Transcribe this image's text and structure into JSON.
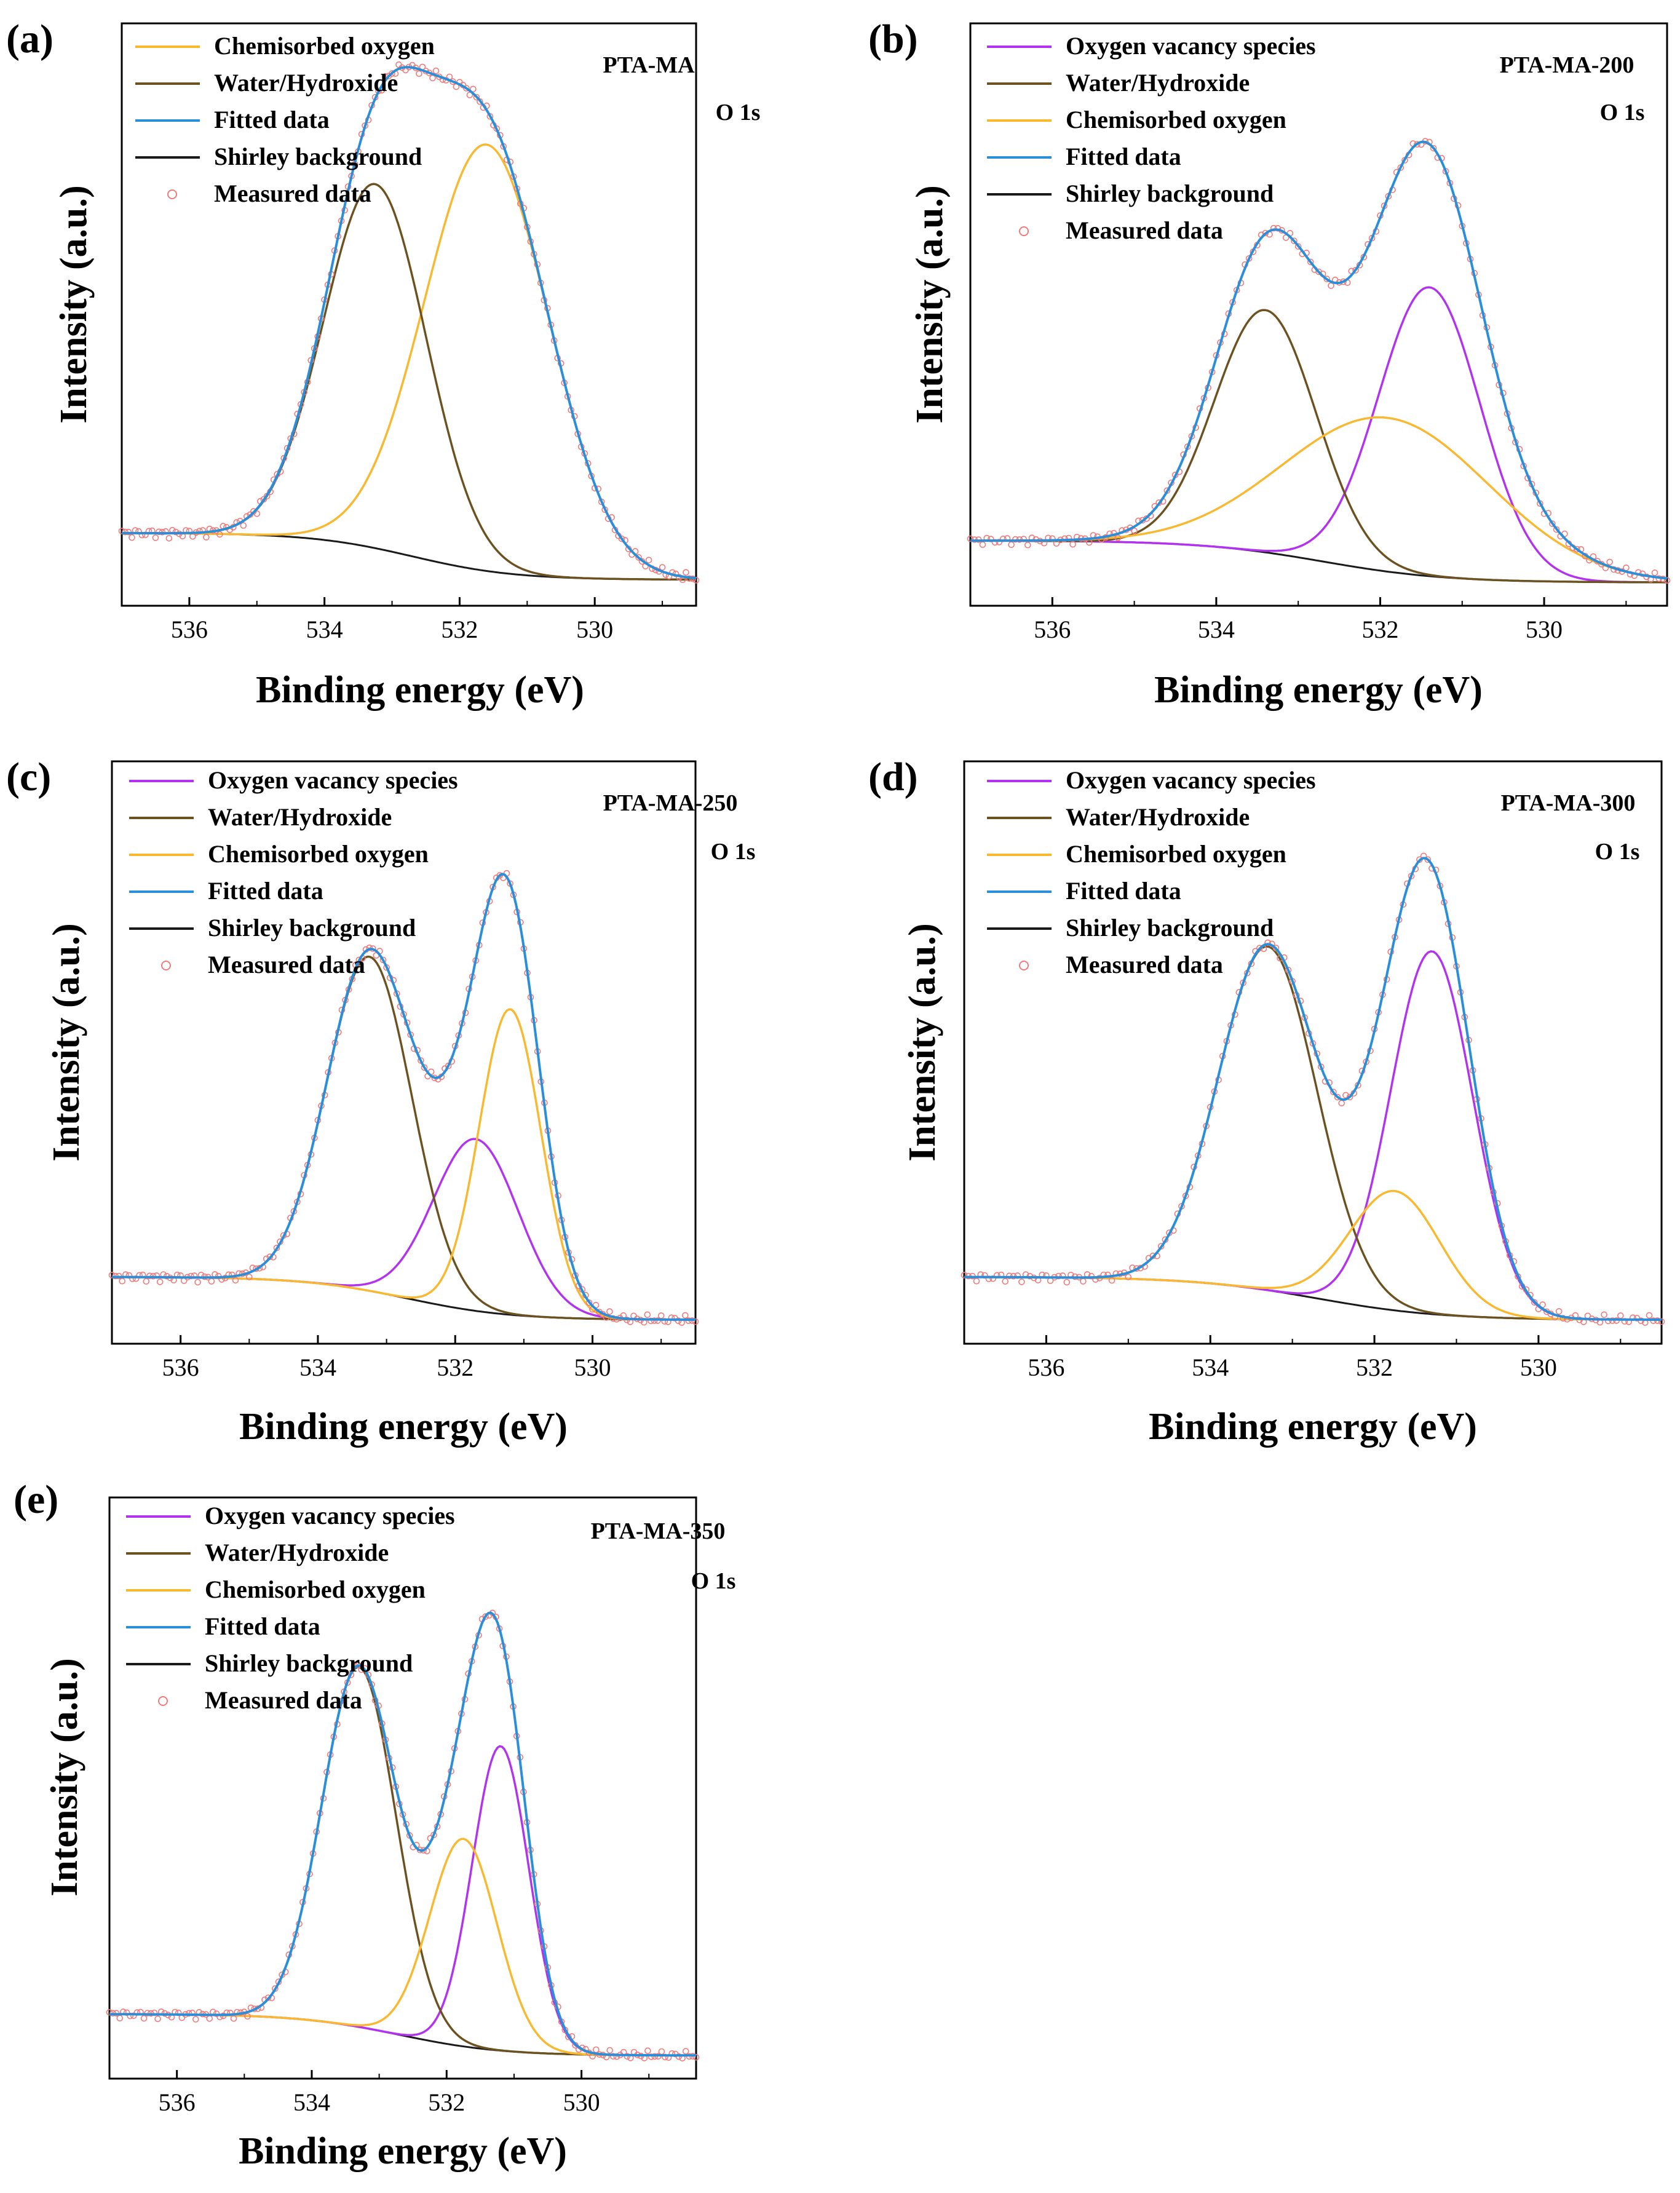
{
  "colors": {
    "vacancy": "#b233ee",
    "water": "#6b5220",
    "chemisorbed": "#f8b830",
    "fitted": "#2a8fd8",
    "shirley": "#1a1a1a",
    "measured": "#f07a7a"
  },
  "chart_data": [
    {
      "type": "line",
      "panel": "(a)",
      "sample": "PTA-MA",
      "region": "O 1s",
      "xlabel": "Binding energy (eV)",
      "ylabel": "Intensity (a.u.)",
      "xlim": [
        537.0,
        528.5
      ],
      "ylim": [
        0,
        1.12
      ],
      "xticks": [
        "536",
        "534",
        "532",
        "530"
      ],
      "xtick_values": [
        536,
        534,
        532,
        530
      ],
      "legend_position": "top-left",
      "legend": [
        "Chemisorbed oxygen",
        "Water/Hydroxide",
        "Fitted data",
        "Shirley background",
        "Measured data"
      ],
      "background": {
        "low": 0.05,
        "high": 0.14,
        "center": 532.7,
        "width": 0.75
      },
      "components": [
        {
          "name": "Chemisorbed oxygen",
          "key": "chemisorbed",
          "center": 531.6,
          "height": 0.82,
          "sigma": 0.92
        },
        {
          "name": "Water/Hydroxide",
          "key": "water",
          "center": 533.25,
          "height": 0.7,
          "sigma": 0.76
        }
      ]
    },
    {
      "type": "line",
      "panel": "(b)",
      "sample": "PTA-MA-200",
      "region": "O 1s",
      "xlabel": "Binding energy (eV)",
      "ylabel": "Intensity (a.u.)",
      "xlim": [
        537.0,
        528.5
      ],
      "ylim": [
        0,
        1.25
      ],
      "xticks": [
        "536",
        "534",
        "532",
        "530"
      ],
      "xtick_values": [
        536,
        534,
        532,
        530
      ],
      "legend_position": "top-left",
      "legend": [
        "Oxygen vacancy species",
        "Water/Hydroxide",
        "Chemisorbed oxygen",
        "Fitted data",
        "Shirley background",
        "Measured data"
      ],
      "background": {
        "low": 0.05,
        "high": 0.14,
        "center": 532.7,
        "width": 0.75
      },
      "components": [
        {
          "name": "Oxygen vacancy species",
          "key": "vacancy",
          "center": 531.4,
          "height": 0.62,
          "sigma": 0.62
        },
        {
          "name": "Water/Hydroxide",
          "key": "water",
          "center": 533.4,
          "height": 0.52,
          "sigma": 0.62
        },
        {
          "name": "Chemisorbed oxygen",
          "key": "chemisorbed",
          "center": 531.9,
          "height": 0.33,
          "sigma": 1.25
        }
      ]
    },
    {
      "type": "line",
      "panel": "(c)",
      "sample": "PTA-MA-250",
      "region": "O 1s",
      "xlabel": "Binding energy (eV)",
      "ylabel": "Intensity (a.u.)",
      "xlim": [
        537.0,
        528.5
      ],
      "ylim": [
        0,
        1.22
      ],
      "xticks": [
        "536",
        "534",
        "532",
        "530"
      ],
      "xtick_values": [
        536,
        534,
        532,
        530
      ],
      "legend_position": "top-left",
      "legend": [
        "Oxygen vacancy species",
        "Water/Hydroxide",
        "Chemisorbed oxygen",
        "Fitted data",
        "Shirley background",
        "Measured data"
      ],
      "background": {
        "low": 0.05,
        "high": 0.14,
        "center": 532.7,
        "width": 0.75
      },
      "components": [
        {
          "name": "Oxygen vacancy species",
          "key": "vacancy",
          "center": 531.7,
          "height": 0.36,
          "sigma": 0.62
        },
        {
          "name": "Water/Hydroxide",
          "key": "water",
          "center": 533.25,
          "height": 0.7,
          "sigma": 0.62
        },
        {
          "name": "Chemisorbed oxygen",
          "key": "chemisorbed",
          "center": 531.2,
          "height": 0.64,
          "sigma": 0.45
        }
      ]
    },
    {
      "type": "line",
      "panel": "(d)",
      "sample": "PTA-MA-300",
      "region": "O 1s",
      "xlabel": "Binding energy (eV)",
      "ylabel": "Intensity (a.u.)",
      "xlim": [
        537.0,
        528.5
      ],
      "ylim": [
        0,
        1.22
      ],
      "xticks": [
        "536",
        "534",
        "532",
        "530"
      ],
      "xtick_values": [
        536,
        534,
        532,
        530
      ],
      "legend_position": "top-left",
      "legend": [
        "Oxygen vacancy species",
        "Water/Hydroxide",
        "Chemisorbed oxygen",
        "Fitted data",
        "Shirley background",
        "Measured data"
      ],
      "background": {
        "low": 0.05,
        "high": 0.14,
        "center": 532.7,
        "width": 0.75
      },
      "components": [
        {
          "name": "Oxygen vacancy species",
          "key": "vacancy",
          "center": 531.3,
          "height": 0.76,
          "sigma": 0.5
        },
        {
          "name": "Water/Hydroxide",
          "key": "water",
          "center": 533.3,
          "height": 0.72,
          "sigma": 0.6
        },
        {
          "name": "Chemisorbed oxygen",
          "key": "chemisorbed",
          "center": 531.75,
          "height": 0.25,
          "sigma": 0.55
        }
      ]
    },
    {
      "type": "line",
      "panel": "(e)",
      "sample": "PTA-MA-350",
      "region": "O 1s",
      "xlabel": "Binding energy (eV)",
      "ylabel": "Intensity (a.u.)",
      "xlim": [
        537.0,
        528.3
      ],
      "ylim": [
        0,
        1.26
      ],
      "xticks": [
        "536",
        "534",
        "532",
        "530"
      ],
      "xtick_values": [
        536,
        534,
        532,
        530
      ],
      "legend_position": "top-left",
      "legend": [
        "Oxygen vacancy species",
        "Water/Hydroxide",
        "Chemisorbed oxygen",
        "Fitted data",
        "Shirley background",
        "Measured data"
      ],
      "background": {
        "low": 0.05,
        "high": 0.14,
        "center": 532.7,
        "width": 0.75
      },
      "components": [
        {
          "name": "Oxygen vacancy species",
          "key": "vacancy",
          "center": 531.2,
          "height": 0.66,
          "sigma": 0.42
        },
        {
          "name": "Water/Hydroxide",
          "key": "water",
          "center": 533.3,
          "height": 0.78,
          "sigma": 0.55
        },
        {
          "name": "Chemisorbed oxygen",
          "key": "chemisorbed",
          "center": 531.75,
          "height": 0.45,
          "sigma": 0.5
        }
      ]
    }
  ]
}
